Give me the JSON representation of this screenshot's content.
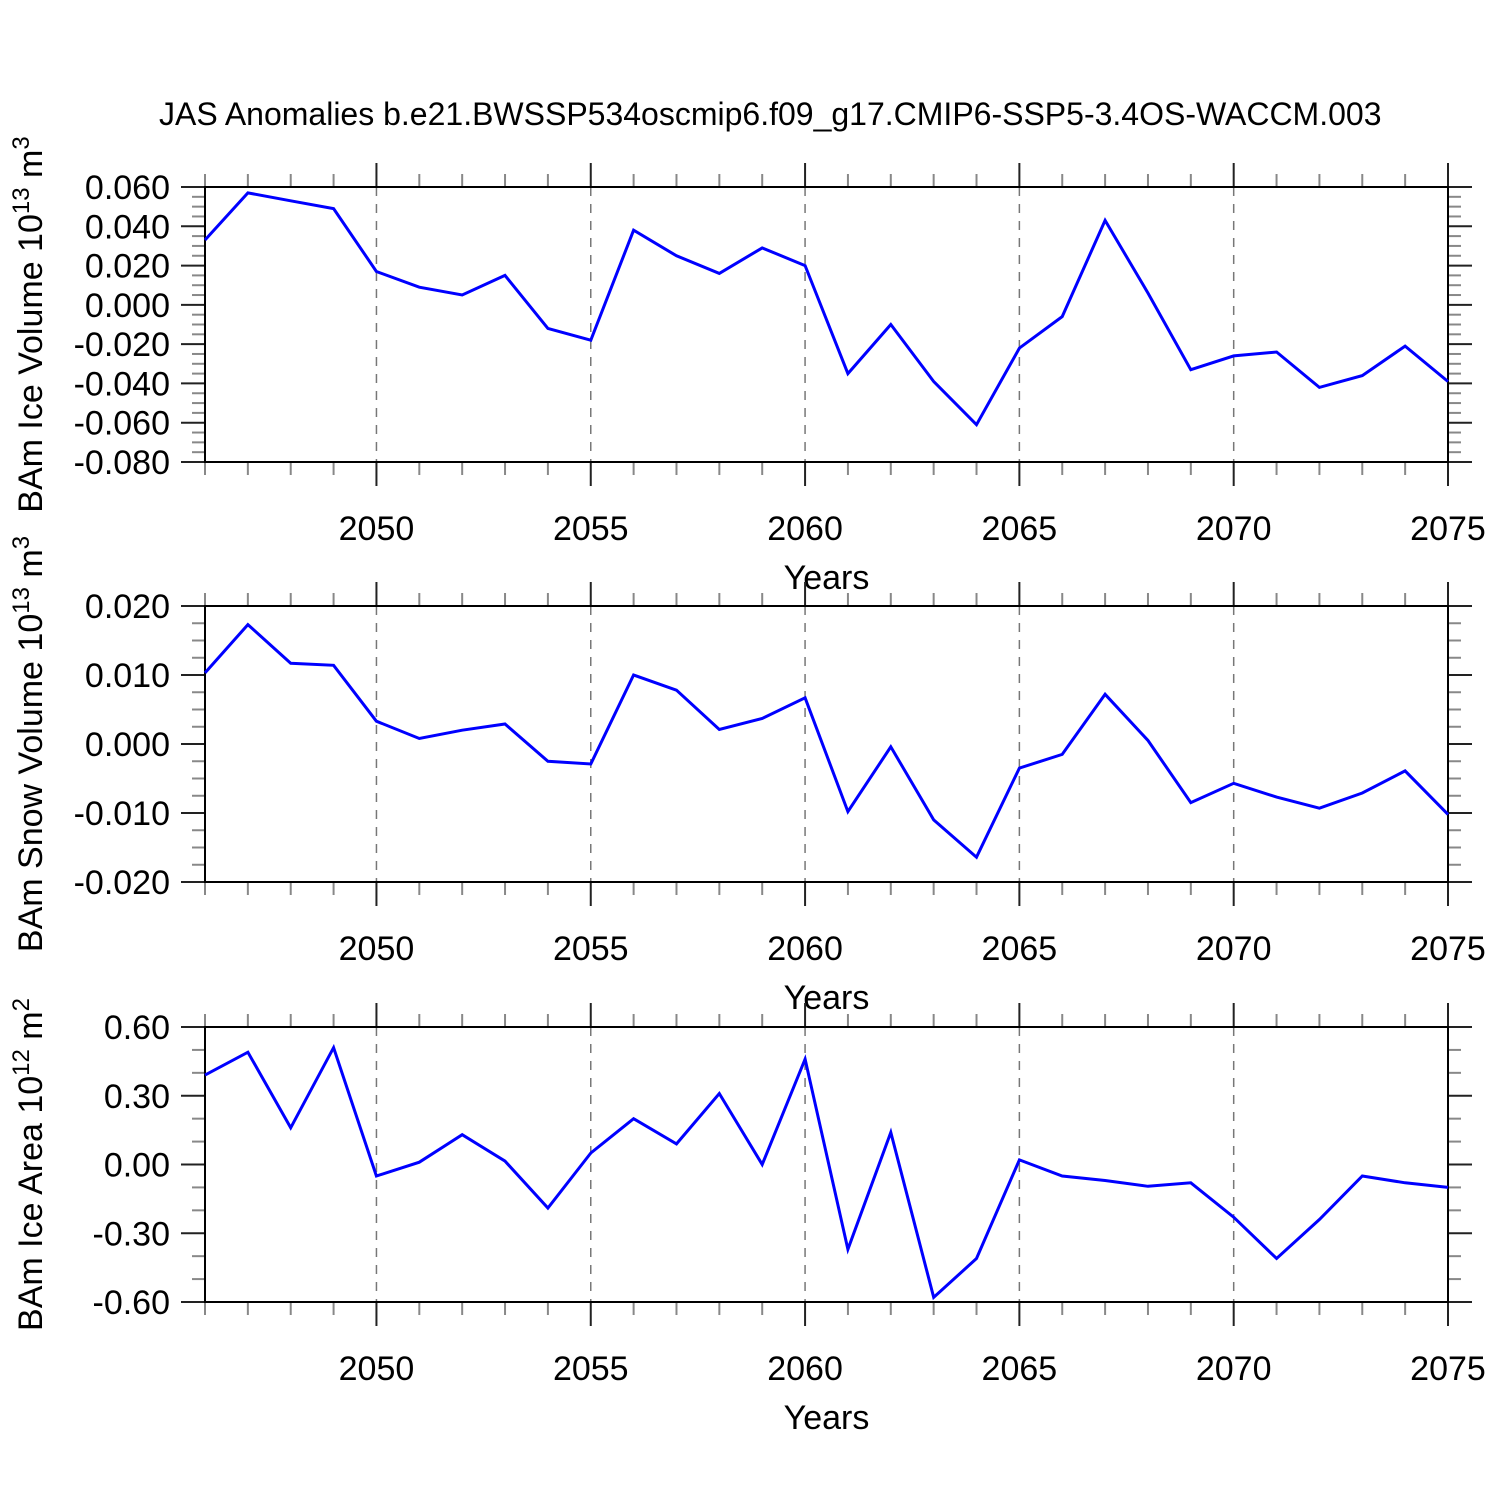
{
  "title": "JAS Anomalies b.e21.BWSSP534oscmip6.f09_g17.CMIP6-SSP5-3.4OS-WACCM.003",
  "colors": {
    "line": "#0000ff",
    "grid": "#777777",
    "box": "#000000",
    "major_tick": "#222222",
    "minor_tick": "#888888",
    "text": "#000000",
    "background": "#ffffff"
  },
  "chart_data": [
    {
      "id": "ice-volume",
      "type": "line",
      "ylabel_parts": [
        {
          "t": "BAm Ice Volume 10"
        },
        {
          "t": "13",
          "sup": true
        },
        {
          "t": " m"
        },
        {
          "t": "3",
          "sup": true
        }
      ],
      "ylabel_plain": "BAm Ice Volume 10^13 m^3",
      "xlabel": "Years",
      "x": [
        2046,
        2047,
        2048,
        2049,
        2050,
        2051,
        2052,
        2053,
        2054,
        2055,
        2056,
        2057,
        2058,
        2059,
        2060,
        2061,
        2062,
        2063,
        2064,
        2065,
        2066,
        2067,
        2068,
        2069,
        2070,
        2071,
        2072,
        2073,
        2074,
        2075
      ],
      "values": [
        0.033,
        0.057,
        0.053,
        0.049,
        0.017,
        0.009,
        0.005,
        0.015,
        -0.012,
        -0.018,
        0.038,
        0.025,
        0.016,
        0.029,
        0.02,
        -0.035,
        -0.01,
        -0.039,
        -0.061,
        -0.022,
        -0.006,
        0.043,
        0.006,
        -0.033,
        -0.026,
        -0.024,
        -0.042,
        -0.036,
        -0.021,
        -0.039
      ],
      "xlim": [
        2046,
        2075
      ],
      "ylim": [
        -0.08,
        0.06
      ],
      "ytick_step": 0.02,
      "ytick_minor_step": 0.005,
      "ytick_decimals": 3,
      "xtick_minor_step": 1,
      "xticks_labeled": [
        2050,
        2055,
        2060,
        2065,
        2070,
        2075
      ],
      "grid_x": [
        2050,
        2055,
        2060,
        2065,
        2070
      ],
      "grid_style": "dashed",
      "legend": "none"
    },
    {
      "id": "snow-volume",
      "type": "line",
      "ylabel_parts": [
        {
          "t": "BAm Snow Volume 10"
        },
        {
          "t": "13",
          "sup": true
        },
        {
          "t": " m"
        },
        {
          "t": "3",
          "sup": true
        }
      ],
      "ylabel_plain": "BAm Snow Volume 10^13 m^3",
      "xlabel": "Years",
      "x": [
        2046,
        2047,
        2048,
        2049,
        2050,
        2051,
        2052,
        2053,
        2054,
        2055,
        2056,
        2057,
        2058,
        2059,
        2060,
        2061,
        2062,
        2063,
        2064,
        2065,
        2066,
        2067,
        2068,
        2069,
        2070,
        2071,
        2072,
        2073,
        2074,
        2075
      ],
      "values": [
        0.0103,
        0.0173,
        0.0117,
        0.0114,
        0.0033,
        0.0008,
        0.002,
        0.0029,
        -0.0025,
        -0.0029,
        0.01,
        0.0078,
        0.0021,
        0.0037,
        0.0067,
        -0.0098,
        -0.0004,
        -0.011,
        -0.0164,
        -0.0035,
        -0.0015,
        0.0072,
        0.0005,
        -0.0085,
        -0.0057,
        -0.0077,
        -0.0093,
        -0.0071,
        -0.0039,
        -0.0102
      ],
      "xlim": [
        2046,
        2075
      ],
      "ylim": [
        -0.02,
        0.02
      ],
      "ytick_step": 0.01,
      "ytick_minor_step": 0.0025,
      "ytick_decimals": 3,
      "xtick_minor_step": 1,
      "xticks_labeled": [
        2050,
        2055,
        2060,
        2065,
        2070,
        2075
      ],
      "grid_x": [
        2050,
        2055,
        2060,
        2065,
        2070
      ],
      "grid_style": "dashed",
      "legend": "none"
    },
    {
      "id": "ice-area",
      "type": "line",
      "ylabel_parts": [
        {
          "t": "BAm Ice Area 10"
        },
        {
          "t": "12",
          "sup": true
        },
        {
          "t": " m"
        },
        {
          "t": "2",
          "sup": true
        }
      ],
      "ylabel_plain": "BAm Ice Area 10^12 m^2",
      "xlabel": "Years",
      "x": [
        2046,
        2047,
        2048,
        2049,
        2050,
        2051,
        2052,
        2053,
        2054,
        2055,
        2056,
        2057,
        2058,
        2059,
        2060,
        2061,
        2062,
        2063,
        2064,
        2065,
        2066,
        2067,
        2068,
        2069,
        2070,
        2071,
        2072,
        2073,
        2074,
        2075
      ],
      "values": [
        0.39,
        0.49,
        0.16,
        0.51,
        -0.05,
        0.01,
        0.13,
        0.015,
        -0.19,
        0.05,
        0.2,
        0.09,
        0.31,
        0.0,
        0.46,
        -0.37,
        0.14,
        -0.58,
        -0.41,
        0.02,
        -0.05,
        -0.07,
        -0.095,
        -0.08,
        -0.23,
        -0.41,
        -0.24,
        -0.05,
        -0.08,
        -0.1
      ],
      "xlim": [
        2046,
        2075
      ],
      "ylim": [
        -0.6,
        0.6
      ],
      "ytick_step": 0.3,
      "ytick_minor_step": 0.1,
      "ytick_decimals": 2,
      "xtick_minor_step": 1,
      "xticks_labeled": [
        2050,
        2055,
        2060,
        2065,
        2070,
        2075
      ],
      "grid_x": [
        2050,
        2055,
        2060,
        2065,
        2070
      ],
      "grid_style": "dashed",
      "legend": "none"
    }
  ]
}
